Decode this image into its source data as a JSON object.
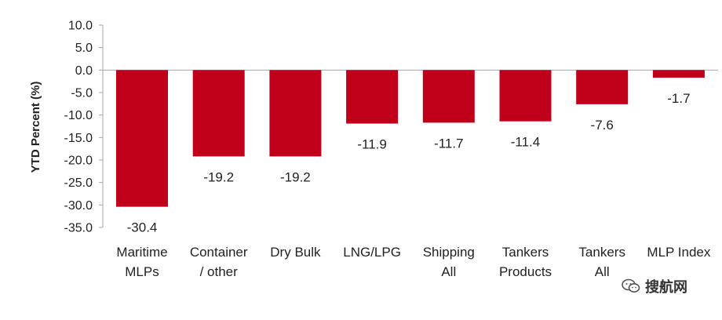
{
  "chart_data": {
    "type": "bar",
    "categories": [
      [
        "Maritime",
        "MLPs"
      ],
      [
        "Container",
        "/ other"
      ],
      [
        "Dry Bulk"
      ],
      [
        "LNG/LPG"
      ],
      [
        "Shipping",
        "All"
      ],
      [
        "Tankers",
        "Products"
      ],
      [
        "Tankers",
        "All"
      ],
      [
        "MLP Index"
      ]
    ],
    "values": [
      -30.4,
      -19.2,
      -19.2,
      -11.9,
      -11.7,
      -11.4,
      -7.6,
      -1.7
    ],
    "value_labels": [
      "-30.4",
      "-19.2",
      "-19.2",
      "-11.9",
      "-11.7",
      "-11.4",
      "-7.6",
      "-1.7"
    ],
    "ylabel": "YTD Percent (%)",
    "ylim": [
      -35,
      10
    ],
    "yticks": [
      "10.0",
      "5.0",
      "0.0",
      "-5.0",
      "-10.0",
      "-15.0",
      "-20.0",
      "-25.0",
      "-30.0",
      "-35.0"
    ],
    "bar_color": "#c0001a",
    "grid": false,
    "legend": "none"
  },
  "watermark": {
    "text": "搜航网",
    "icon": "wechat-icon"
  }
}
